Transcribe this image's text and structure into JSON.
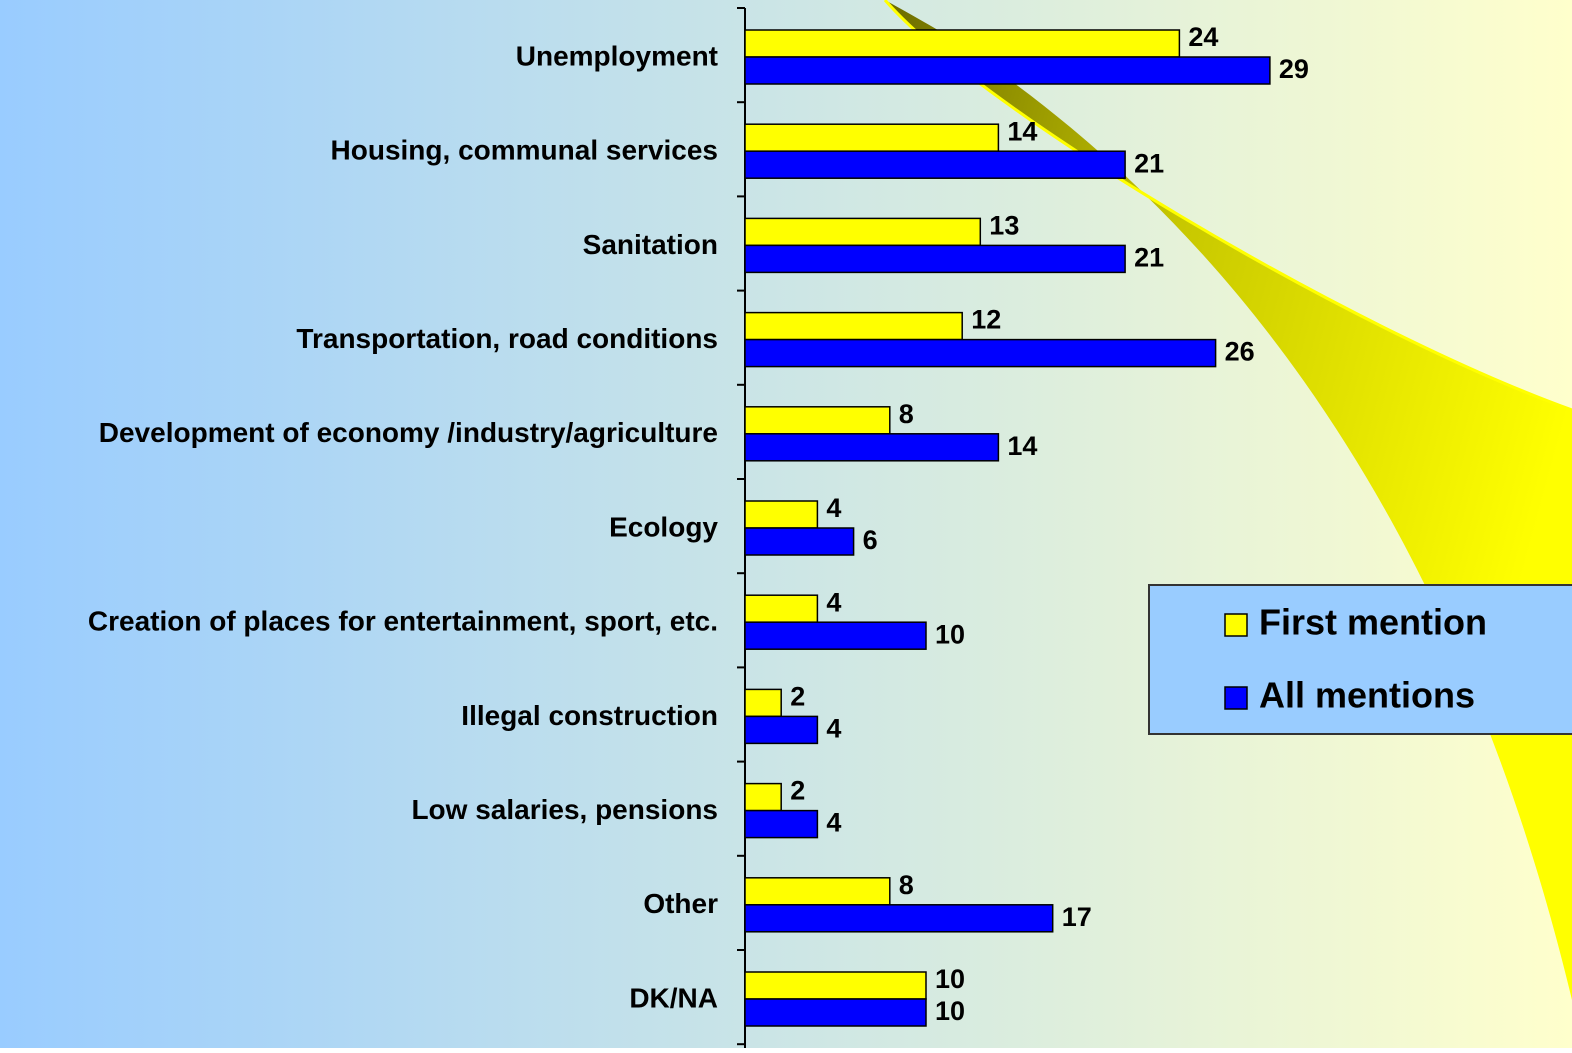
{
  "chart_data": {
    "type": "bar",
    "orientation": "horizontal",
    "categories": [
      "Unemployment",
      "Housing, communal services",
      "Sanitation",
      "Transportation, road conditions",
      "Development of economy /industry/agriculture",
      "Ecology",
      "Creation of places for entertainment, sport, etc.",
      "Illegal construction",
      "Low salaries, pensions",
      "Other",
      "DK/NA"
    ],
    "series": [
      {
        "name": "First mention",
        "color": "#ffff00",
        "values": [
          24,
          14,
          13,
          12,
          8,
          4,
          4,
          2,
          2,
          8,
          10
        ]
      },
      {
        "name": "All mentions",
        "color": "#0000ff",
        "values": [
          29,
          21,
          21,
          26,
          14,
          6,
          10,
          4,
          4,
          17,
          10
        ]
      }
    ]
  }
}
